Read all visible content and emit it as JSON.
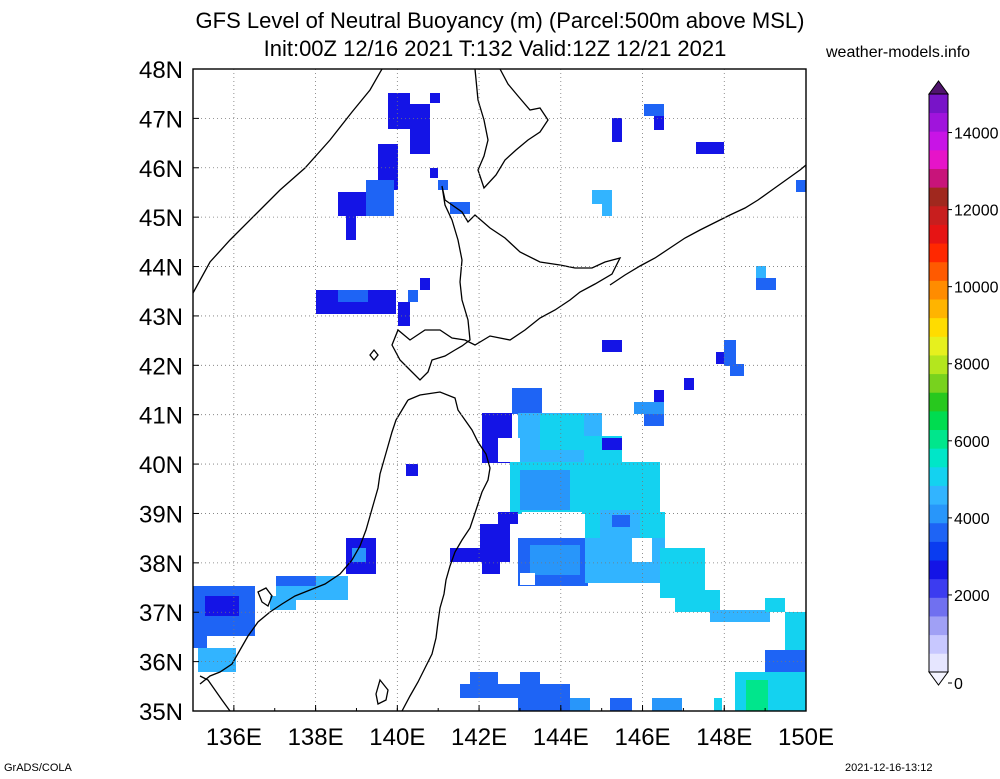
{
  "header": {
    "title_line1": "GFS Level of Neutral Buoyancy (m) (Parcel:500m above MSL)",
    "title_line2": "Init:00Z 12/16 2021 T:132 Valid:12Z 12/21 2021",
    "site": "weather-models.info"
  },
  "footer": {
    "left": "GrADS/COLA",
    "right": "2021-12-16-13:12"
  },
  "map": {
    "lon_ticks": [
      "136E",
      "138E",
      "140E",
      "142E",
      "144E",
      "146E",
      "148E",
      "150E"
    ],
    "lat_ticks": [
      "35N",
      "36N",
      "37N",
      "38N",
      "39N",
      "40N",
      "41N",
      "42N",
      "43N",
      "44N",
      "45N",
      "46N",
      "47N",
      "48N"
    ],
    "lon_range": [
      135,
      150
    ],
    "lat_range": [
      35,
      48
    ]
  },
  "colorbar": {
    "labels": [
      "0",
      "2000",
      "4000",
      "6000",
      "8000",
      "10000",
      "12000",
      "14000"
    ],
    "range": [
      0,
      15000
    ],
    "colors": [
      "#e6e6ff",
      "#c8c8ff",
      "#a0a0f5",
      "#7070f0",
      "#3c3cf0",
      "#1414e6",
      "#0a3cf0",
      "#1e64f5",
      "#2896fa",
      "#32b4ff",
      "#14d2f0",
      "#00e6c8",
      "#00e68c",
      "#00dc50",
      "#28c81e",
      "#78d21e",
      "#b4e61e",
      "#e6f01e",
      "#ffdc00",
      "#ffb400",
      "#ff8c00",
      "#ff5a00",
      "#ff2800",
      "#e61414",
      "#c81e1e",
      "#a0281e",
      "#c8147a",
      "#e614c8",
      "#c814e6",
      "#a014dc",
      "#7814c8"
    ]
  }
}
